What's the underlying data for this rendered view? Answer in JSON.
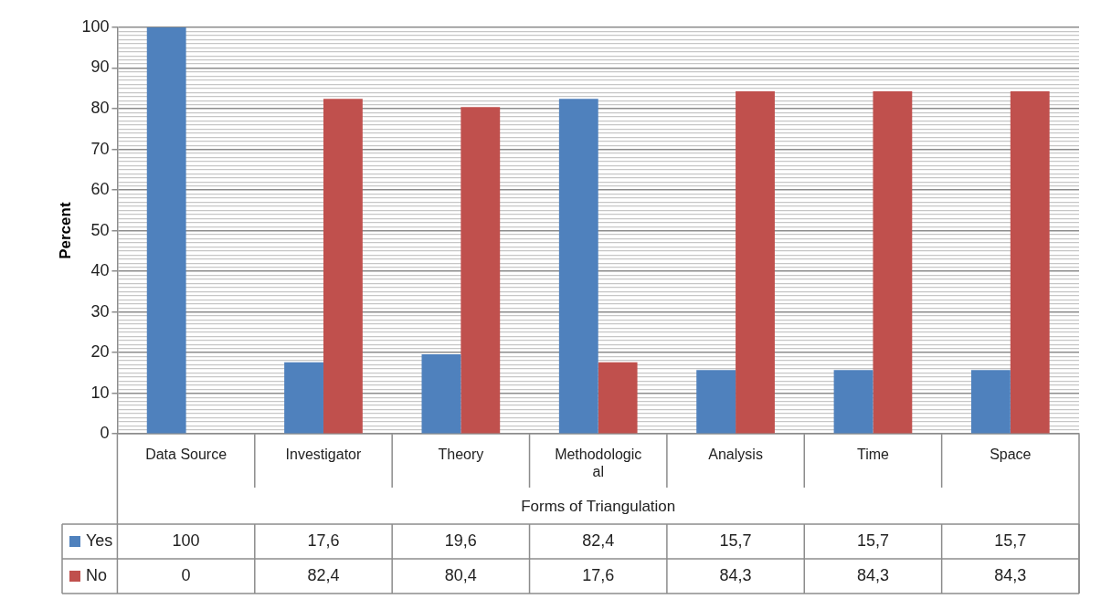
{
  "chart_data": {
    "type": "bar",
    "xlabel": "Forms of Triangulation",
    "ylabel": "Percent",
    "categories": [
      "Data Source",
      "Investigator",
      "Theory",
      "Methodological",
      "Analysis",
      "Time",
      "Space"
    ],
    "series": [
      {
        "name": "Yes",
        "color": "#4f81bd",
        "values": [
          100,
          17.6,
          19.6,
          82.4,
          15.7,
          15.7,
          15.7
        ],
        "value_labels": [
          "100",
          "17,6",
          "19,6",
          "82,4",
          "15,7",
          "15,7",
          "15,7"
        ]
      },
      {
        "name": "No",
        "color": "#c0504d",
        "values": [
          0,
          82.4,
          80.4,
          17.6,
          84.3,
          84.3,
          84.3
        ],
        "value_labels": [
          "0",
          "82,4",
          "80,4",
          "17,6",
          "84,3",
          "84,3",
          "84,3"
        ]
      }
    ],
    "ylim": [
      0,
      100
    ],
    "yticks": [
      0,
      {
        "value": 1,
        "label": null
      },
      {
        "value": 2,
        "label": null
      },
      {
        "value": 3,
        "label": null
      },
      {
        "value": 4,
        "label": null
      },
      {
        "value": 5,
        "label": null
      },
      {
        "value": 6,
        "label": null
      },
      {
        "value": 7,
        "label": null
      },
      {
        "value": 8,
        "label": null
      },
      {
        "value": 9,
        "label": null
      },
      10,
      {
        "value": 11,
        "label": null
      },
      {
        "value": 12,
        "label": null
      },
      {
        "value": 13,
        "label": null
      },
      {
        "value": 14,
        "label": null
      },
      {
        "value": 15,
        "label": null
      },
      {
        "value": 16,
        "label": null
      },
      {
        "value": 17,
        "label": null
      },
      {
        "value": 18,
        "label": null
      },
      {
        "value": 19,
        "label": null
      },
      20,
      {
        "value": 21,
        "label": null
      },
      {
        "value": 22,
        "label": null
      },
      {
        "value": 23,
        "label": null
      },
      {
        "value": 24,
        "label": null
      },
      {
        "value": 25,
        "label": null
      },
      {
        "value": 26,
        "label": null
      },
      {
        "value": 27,
        "label": null
      },
      {
        "value": 28,
        "label": null
      },
      {
        "value": 29,
        "label": null
      },
      30,
      {
        "value": 31,
        "label": null
      },
      {
        "value": 32,
        "label": null
      },
      {
        "value": 33,
        "label": null
      },
      {
        "value": 34,
        "label": null
      },
      {
        "value": 35,
        "label": null
      },
      {
        "value": 36,
        "label": null
      },
      {
        "value": 37,
        "label": null
      },
      {
        "value": 38,
        "label": null
      },
      {
        "value": 39,
        "label": null
      },
      40,
      {
        "value": 41,
        "label": null
      },
      {
        "value": 42,
        "label": null
      },
      {
        "value": 43,
        "label": null
      },
      {
        "value": 44,
        "label": null
      },
      {
        "value": 45,
        "label": null
      },
      {
        "value": 46,
        "label": null
      },
      {
        "value": 47,
        "label": null
      },
      {
        "value": 48,
        "label": null
      },
      {
        "value": 49,
        "label": null
      },
      50,
      {
        "value": 51,
        "label": null
      },
      {
        "value": 52,
        "label": null
      },
      {
        "value": 53,
        "label": null
      },
      {
        "value": 54,
        "label": null
      },
      {
        "value": 55,
        "label": null
      },
      {
        "value": 56,
        "label": null
      },
      {
        "value": 57,
        "label": null
      },
      {
        "value": 58,
        "label": null
      },
      {
        "value": 59,
        "label": null
      },
      60,
      {
        "value": 61,
        "label": null
      },
      {
        "value": 62,
        "label": null
      },
      {
        "value": 63,
        "label": null
      },
      {
        "value": 64,
        "label": null
      },
      {
        "value": 65,
        "label": null
      },
      {
        "value": 66,
        "label": null
      },
      {
        "value": 67,
        "label": null
      },
      {
        "value": 68,
        "label": null
      },
      {
        "value": 69,
        "label": null
      },
      70,
      {
        "value": 71,
        "label": null
      },
      {
        "value": 72,
        "label": null
      },
      {
        "value": 73,
        "label": null
      },
      {
        "value": 74,
        "label": null
      },
      {
        "value": 75,
        "label": null
      },
      {
        "value": 76,
        "label": null
      },
      {
        "value": 77,
        "label": null
      },
      {
        "value": 78,
        "label": null
      },
      {
        "value": 79,
        "label": null
      },
      80,
      {
        "value": 81,
        "label": null
      },
      {
        "value": 82,
        "label": null
      },
      {
        "value": 83,
        "label": null
      },
      {
        "value": 84,
        "label": null
      },
      {
        "value": 85,
        "label": null
      },
      {
        "value": 86,
        "label": null
      },
      {
        "value": 87,
        "label": null
      },
      {
        "value": 88,
        "label": null
      },
      {
        "value": 89,
        "label": null
      },
      90,
      {
        "value": 91,
        "label": null
      },
      {
        "value": 92,
        "label": null
      },
      {
        "value": 93,
        "label": null
      },
      {
        "value": 94,
        "label": null
      },
      {
        "value": 95,
        "label": null
      },
      {
        "value": 96,
        "label": null
      },
      {
        "value": 97,
        "label": null
      },
      {
        "value": 98,
        "label": null
      },
      {
        "value": 99,
        "label": null
      },
      100
    ],
    "grid": "y",
    "legend": "bottom"
  }
}
